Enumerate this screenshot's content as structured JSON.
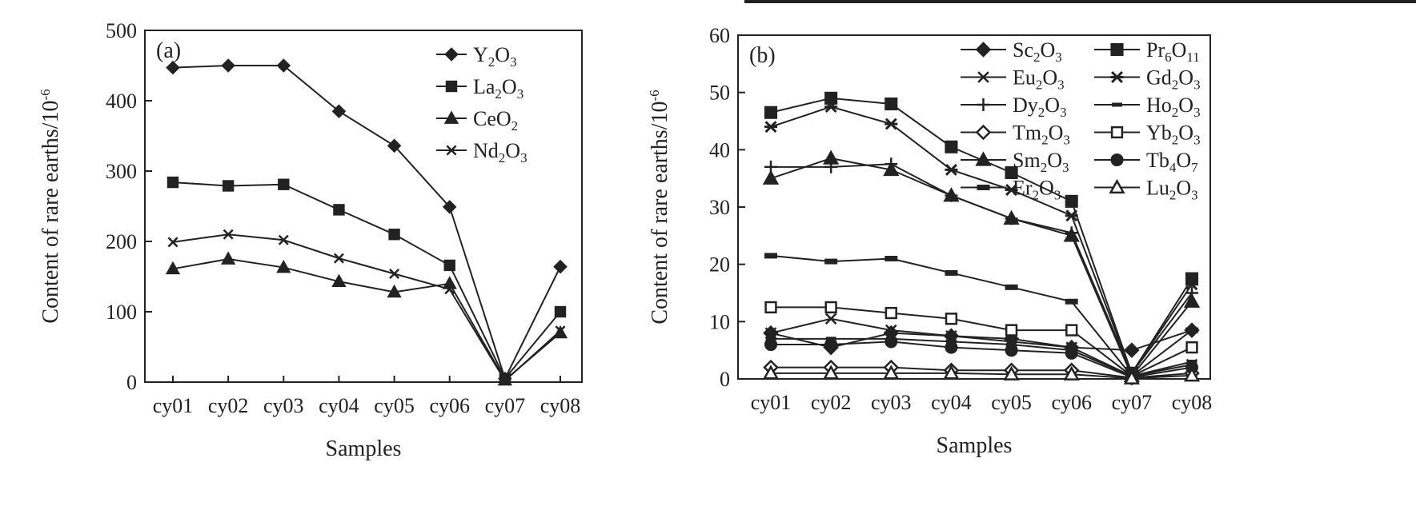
{
  "colors": {
    "ink": "#222222",
    "background": "#ffffff"
  },
  "chart_data": [
    {
      "type": "line",
      "panel_label": "(a)",
      "xlabel": "Samples",
      "ylabel": "Content of rare earths/10⁻⁶",
      "ylim": [
        0,
        500
      ],
      "yticks": [
        0,
        100,
        200,
        300,
        400,
        500
      ],
      "categories": [
        "cy01",
        "cy02",
        "cy03",
        "cy04",
        "cy05",
        "cy06",
        "cy07",
        "cy08"
      ],
      "grid": false,
      "legend_position": "top-right",
      "series": [
        {
          "name": "Y2O3",
          "label_parts": [
            [
              "Y",
              ""
            ],
            [
              "2",
              "sub"
            ],
            [
              "O",
              ""
            ],
            [
              "3",
              "sub"
            ]
          ],
          "marker": "diamond",
          "values": [
            447,
            450,
            450,
            385,
            336,
            249,
            5,
            164
          ]
        },
        {
          "name": "La2O3",
          "label_parts": [
            [
              "La",
              ""
            ],
            [
              "2",
              "sub"
            ],
            [
              "O",
              ""
            ],
            [
              "3",
              "sub"
            ]
          ],
          "marker": "square",
          "values": [
            284,
            279,
            281,
            245,
            210,
            166,
            5,
            100
          ]
        },
        {
          "name": "CeO2",
          "label_parts": [
            [
              "CeO",
              ""
            ],
            [
              "2",
              "sub"
            ]
          ],
          "marker": "triangle",
          "values": [
            161,
            175,
            163,
            143,
            128,
            140,
            3,
            70
          ]
        },
        {
          "name": "Nd2O3",
          "label_parts": [
            [
              "Nd",
              ""
            ],
            [
              "2",
              "sub"
            ],
            [
              "O",
              ""
            ],
            [
              "3",
              "sub"
            ]
          ],
          "marker": "x",
          "values": [
            199,
            210,
            202,
            176,
            154,
            132,
            2,
            73
          ]
        }
      ]
    },
    {
      "type": "line",
      "panel_label": "(b)",
      "xlabel": "Samples",
      "ylabel": "Content of rare earths/10⁻⁶",
      "ylim": [
        0,
        60
      ],
      "yticks": [
        0,
        10,
        20,
        30,
        40,
        50,
        60
      ],
      "categories": [
        "cy01",
        "cy02",
        "cy03",
        "cy04",
        "cy05",
        "cy06",
        "cy07",
        "cy08"
      ],
      "grid": false,
      "legend_position": "top-right",
      "series": [
        {
          "name": "Sc2O3",
          "label_parts": [
            [
              "Sc",
              ""
            ],
            [
              "2",
              "sub"
            ],
            [
              "O",
              ""
            ],
            [
              "3",
              "sub"
            ]
          ],
          "marker": "diamond",
          "values": [
            8,
            5.5,
            8,
            7.5,
            7,
            5.5,
            5,
            8.5
          ]
        },
        {
          "name": "Pr6O11",
          "label_parts": [
            [
              "Pr",
              ""
            ],
            [
              "6",
              "sub"
            ],
            [
              "O",
              ""
            ],
            [
              "11",
              "sub"
            ]
          ],
          "marker": "square",
          "values": [
            46.5,
            49,
            48,
            40.5,
            36,
            31,
            1,
            17.5
          ]
        },
        {
          "name": "Eu2O3",
          "label_parts": [
            [
              "Eu",
              ""
            ],
            [
              "2",
              "sub"
            ],
            [
              "O",
              ""
            ],
            [
              "3",
              "sub"
            ]
          ],
          "marker": "x",
          "values": [
            8,
            10.5,
            8.5,
            7.5,
            6.5,
            5.5,
            0.5,
            2.5
          ]
        },
        {
          "name": "Gd2O3",
          "label_parts": [
            [
              "Gd",
              ""
            ],
            [
              "2",
              "sub"
            ],
            [
              "O",
              ""
            ],
            [
              "3",
              "sub"
            ]
          ],
          "marker": "asterisk",
          "values": [
            44,
            47.5,
            44.5,
            36.5,
            33,
            28.5,
            1,
            16.5
          ]
        },
        {
          "name": "Dy2O3",
          "label_parts": [
            [
              "Dy",
              ""
            ],
            [
              "2",
              "sub"
            ],
            [
              "O",
              ""
            ],
            [
              "3",
              "sub"
            ]
          ],
          "marker": "plus",
          "values": [
            37,
            37,
            37.5,
            32,
            28,
            25.5,
            1,
            15
          ]
        },
        {
          "name": "Ho2O3",
          "label_parts": [
            [
              "Ho",
              ""
            ],
            [
              "2",
              "sub"
            ],
            [
              "O",
              ""
            ],
            [
              "3",
              "sub"
            ]
          ],
          "marker": "dash",
          "values": [
            7,
            7,
            7,
            6.5,
            6,
            5,
            0.5,
            3
          ]
        },
        {
          "name": "Tm2O3",
          "label_parts": [
            [
              "Tm",
              ""
            ],
            [
              "2",
              "sub"
            ],
            [
              "O",
              ""
            ],
            [
              "3",
              "sub"
            ]
          ],
          "marker": "open-diamond",
          "values": [
            2,
            2,
            2,
            1.5,
            1.5,
            1.5,
            0.2,
            1
          ]
        },
        {
          "name": "Yb2O3",
          "label_parts": [
            [
              "Yb",
              ""
            ],
            [
              "2",
              "sub"
            ],
            [
              "O",
              ""
            ],
            [
              "3",
              "sub"
            ]
          ],
          "marker": "open-square",
          "values": [
            12.5,
            12.5,
            11.5,
            10.5,
            8.5,
            8.5,
            0.5,
            5.5
          ]
        },
        {
          "name": "Sm2O3",
          "label_parts": [
            [
              "Sm",
              ""
            ],
            [
              "2",
              "sub"
            ],
            [
              "O",
              ""
            ],
            [
              "3",
              "sub"
            ]
          ],
          "marker": "triangle",
          "values": [
            35,
            38.5,
            36.5,
            32,
            28,
            25,
            0.5,
            13.5
          ]
        },
        {
          "name": "Tb4O7",
          "label_parts": [
            [
              "Tb",
              ""
            ],
            [
              "4",
              "sub"
            ],
            [
              "O",
              ""
            ],
            [
              "7",
              "sub"
            ]
          ],
          "marker": "circle",
          "values": [
            6,
            6,
            6.5,
            5.5,
            5,
            4.5,
            0.3,
            2
          ]
        },
        {
          "name": "Er2O3",
          "label_parts": [
            [
              "Er",
              ""
            ],
            [
              "2",
              "sub"
            ],
            [
              "O",
              ""
            ],
            [
              "3",
              "sub"
            ]
          ],
          "marker": "bar",
          "values": [
            21.5,
            20.5,
            21,
            18.5,
            16,
            13.5,
            0.5,
            8.5
          ]
        },
        {
          "name": "Lu2O3",
          "label_parts": [
            [
              "Lu",
              ""
            ],
            [
              "2",
              "sub"
            ],
            [
              "O",
              ""
            ],
            [
              "3",
              "sub"
            ]
          ],
          "marker": "open-triangle",
          "values": [
            1,
            1,
            1,
            1,
            0.8,
            0.8,
            0.1,
            0.6
          ]
        }
      ]
    }
  ]
}
